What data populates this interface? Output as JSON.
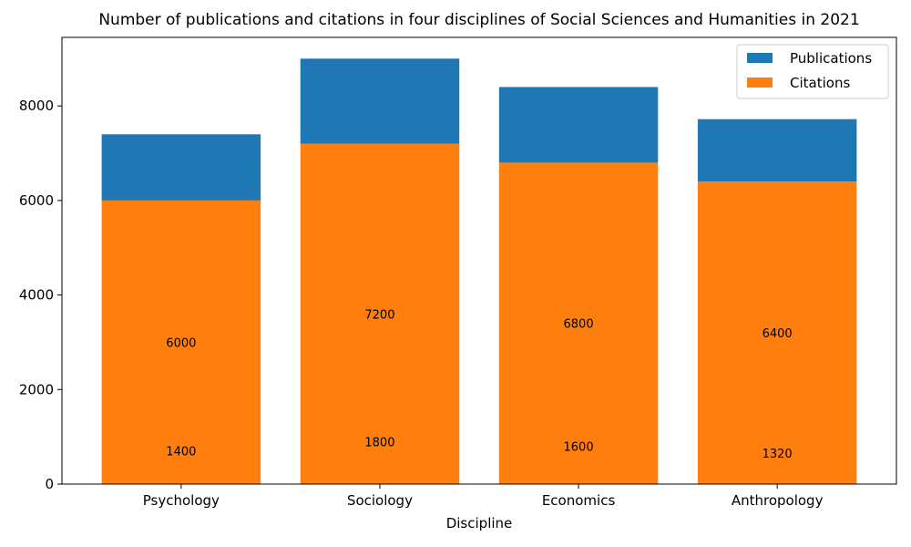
{
  "chart_data": {
    "type": "bar",
    "stacked": true,
    "title": "Number of publications and citations in four disciplines of Social Sciences and Humanities in 2021",
    "xlabel": "Discipline",
    "ylabel": "",
    "categories": [
      "Psychology",
      "Sociology",
      "Economics",
      "Anthropology"
    ],
    "series": [
      {
        "name": "Citations",
        "values": [
          6000,
          7200,
          6800,
          6400
        ],
        "color": "#ff7f0e"
      },
      {
        "name": "Publications",
        "values": [
          1400,
          1800,
          1600,
          1320
        ],
        "color": "#1f77b4"
      }
    ],
    "ylim": [
      0,
      9450
    ],
    "yticks": [
      0,
      2000,
      4000,
      6000,
      8000
    ],
    "grid": false,
    "legend": {
      "position": "top-right",
      "entries": [
        "Publications",
        "Citations"
      ]
    }
  }
}
